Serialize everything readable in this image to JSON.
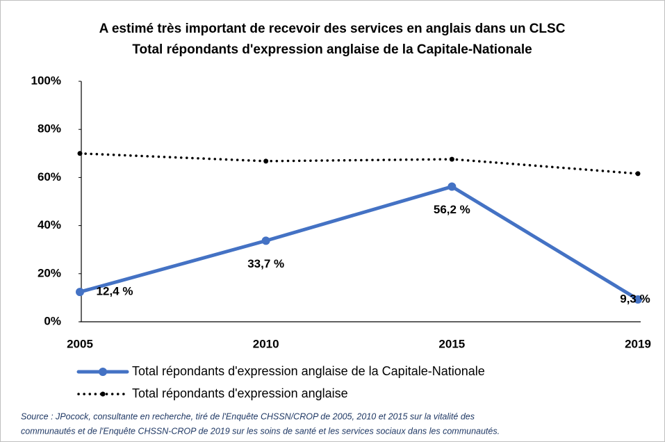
{
  "chart_data": {
    "type": "line",
    "title": [
      "A estimé très important de recevoir des services en anglais  dans un CLSC",
      "Total répondants d'expression anglaise de la Capitale-Nationale"
    ],
    "categories": [
      "2005",
      "2010",
      "2015",
      "2019"
    ],
    "series": [
      {
        "name": "Total répondants d'expression anglaise de la Capitale-Nationale",
        "color": "#4472c4",
        "style": "solid",
        "values": [
          12.4,
          33.7,
          56.2,
          9.3
        ],
        "value_labels": [
          "12,4 %",
          "33,7 %",
          "56,2 %",
          "9,3 %"
        ]
      },
      {
        "name": "Total répondants d'expression anglaise",
        "color": "#000000",
        "style": "dotted",
        "values": [
          70,
          66.8,
          67.6,
          61.6
        ]
      }
    ],
    "ylim": [
      0,
      100
    ],
    "yticks": [
      {
        "value": 0,
        "label": "0%"
      },
      {
        "value": 20,
        "label": "20%"
      },
      {
        "value": 40,
        "label": "40%"
      },
      {
        "value": 60,
        "label": "60%"
      },
      {
        "value": 80,
        "label": "80%"
      },
      {
        "value": 100,
        "label": "100%"
      }
    ],
    "source": [
      "Source : JPocock, consultante en recherche, tiré de l'Enquête CHSSN/CROP de 2005, 2010 et 2015 sur la vitalité des",
      "communautés et de l'Enquête CHSSN-CROP de 2019 sur les soins de santé et les services sociaux dans les communautés."
    ]
  }
}
